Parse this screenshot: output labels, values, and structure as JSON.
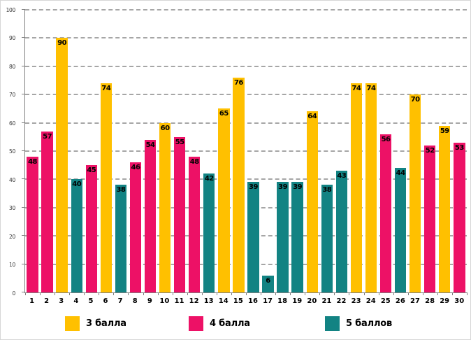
{
  "frame": {
    "background": "#ffffff",
    "border_color": "#d6d6d6",
    "axis_color": "#7f7f7f",
    "grid_color": "#a6a6a6",
    "y_label_color": "#333333",
    "text_color": "#000000"
  },
  "chart_data": {
    "type": "bar",
    "title": "",
    "xlabel": "",
    "ylabel": "",
    "ylim": [
      0,
      100
    ],
    "y_tick_step": 10,
    "y_tick_labels": [
      "0",
      "10",
      "20",
      "30",
      "40",
      "50",
      "60",
      "70",
      "80",
      "90",
      "100"
    ],
    "grid": "horizontal dashed",
    "value_labels": "inside bar top, bold black",
    "legend_position": "bottom",
    "categories": [
      "1",
      "2",
      "3",
      "4",
      "5",
      "6",
      "7",
      "8",
      "9",
      "10",
      "11",
      "12",
      "13",
      "14",
      "15",
      "16",
      "17",
      "18",
      "19",
      "20",
      "21",
      "22",
      "23",
      "24",
      "25",
      "26",
      "27",
      "28",
      "29",
      "30"
    ],
    "values": [
      48,
      57,
      90,
      40,
      45,
      74,
      38,
      46,
      54,
      60,
      55,
      48,
      42,
      65,
      76,
      39,
      6,
      39,
      39,
      64,
      38,
      43,
      74,
      74,
      56,
      44,
      70,
      52,
      59,
      53
    ],
    "groups": [
      "4 балла",
      "4 балла",
      "3 балла",
      "5 баллов",
      "4 балла",
      "3 балла",
      "5 баллов",
      "4 балла",
      "4 балла",
      "3 балла",
      "4 балла",
      "4 балла",
      "5 баллов",
      "3 балла",
      "3 балла",
      "5 баллов",
      "5 баллов",
      "5 баллов",
      "5 баллов",
      "3 балла",
      "5 баллов",
      "5 баллов",
      "3 балла",
      "3 балла",
      "4 балла",
      "5 баллов",
      "3 балла",
      "4 балла",
      "3 балла",
      "4 балла"
    ],
    "legend": [
      {
        "label": "3 балла",
        "color": "#FFC000"
      },
      {
        "label": "4 балла",
        "color": "#ED1166"
      },
      {
        "label": "5 баллов",
        "color": "#128383"
      }
    ]
  }
}
